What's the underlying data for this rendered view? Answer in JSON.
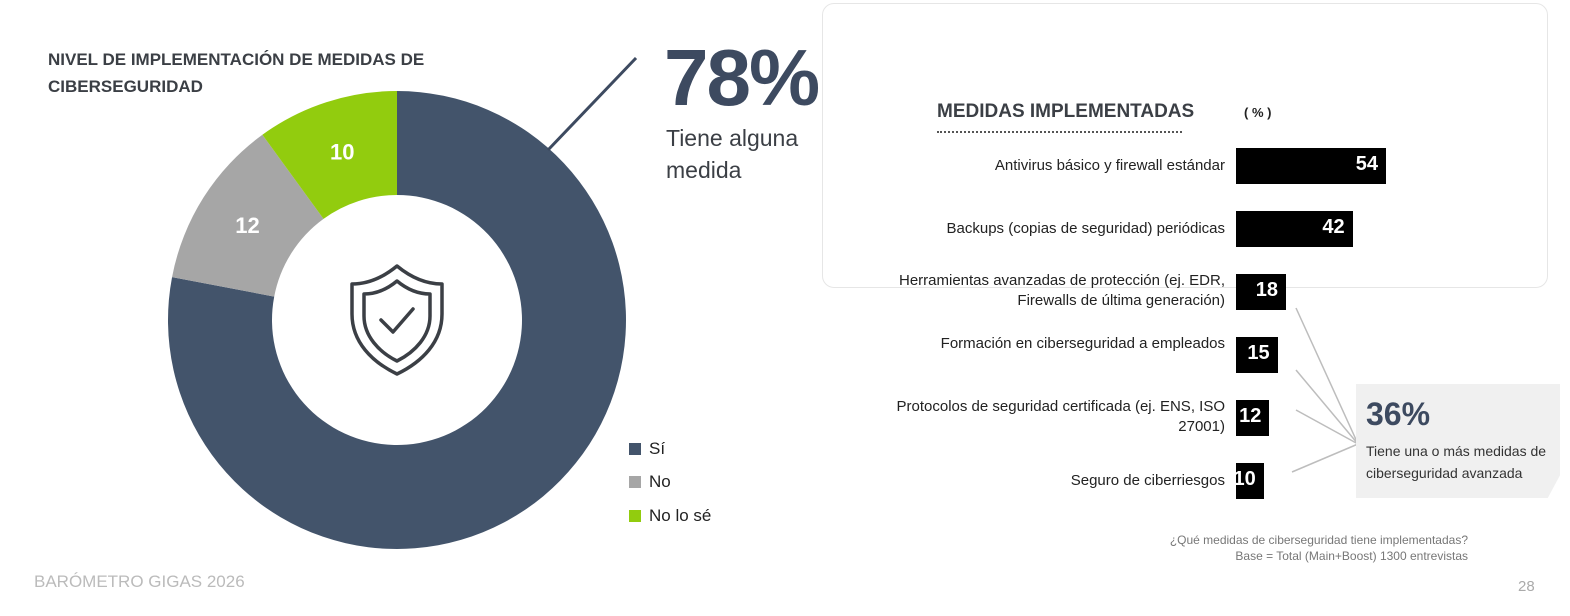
{
  "colors": {
    "si": "#43546b",
    "no": "#a6a6a6",
    "nolose": "#92cc0e",
    "bar": "#000000"
  },
  "chart_data": [
    {
      "type": "pie",
      "title": "NIVEL DE IMPLEMENTACIÓN DE MEDIDAS DE CIBERSEGURIDAD",
      "categories": [
        "Sí",
        "No",
        "No lo sé"
      ],
      "values": [
        78,
        12,
        10
      ],
      "data_labels": [
        "",
        "12",
        "10"
      ],
      "legend": "bottom-right",
      "center_icon": "shield-check-icon"
    },
    {
      "type": "bar",
      "orientation": "horizontal",
      "title": "MEDIDAS IMPLEMENTADAS",
      "unit": "( % )",
      "categories": [
        "Antivirus básico y firewall estándar",
        "Backups (copias de seguridad) periódicas",
        "Herramientas avanzadas de protección (ej. EDR, Firewalls de última generación)",
        "Formación en ciberseguridad a empleados",
        "Protocolos de seguridad certificada (ej. ENS, ISO 27001)",
        "Seguro de ciberriesgos"
      ],
      "values": [
        54,
        42,
        18,
        15,
        12,
        10
      ],
      "xlim": [
        0,
        100
      ]
    }
  ],
  "headline": {
    "pct": "78%",
    "text": "Tiene alguna medida"
  },
  "callout": {
    "pct": "36%",
    "text": "Tiene una o más medidas de ciberseguridad avanzada"
  },
  "footnote": {
    "question": "¿Qué medidas de ciberseguridad tiene implementadas?",
    "base": "Base = Total (Main+Boost) 1300 entrevistas"
  },
  "footer": {
    "brand": "BARÓMETRO GIGAS 2026",
    "page": "28"
  }
}
